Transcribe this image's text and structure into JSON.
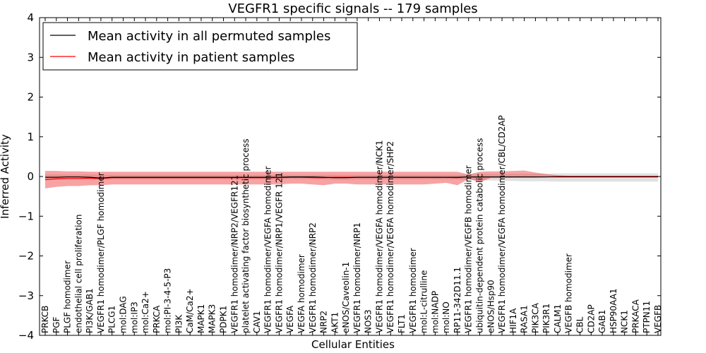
{
  "chart_data": {
    "type": "line",
    "title": "VEGFR1 specific signals -- 179 samples",
    "xlabel": "Cellular Entities",
    "ylabel": "Inferred Activity",
    "ylim": [
      -4,
      4
    ],
    "yticks": [
      -4,
      -3,
      -2,
      -1,
      0,
      1,
      2,
      3,
      4
    ],
    "ytick_labels": [
      "−4",
      "−3",
      "−2",
      "−1",
      "0",
      "1",
      "2",
      "3",
      "4"
    ],
    "legend": {
      "location": "upper-left",
      "entries": [
        {
          "label": "Mean activity in all permuted samples",
          "color": "#000000"
        },
        {
          "label": "Mean activity in patient samples",
          "color": "#ff0000"
        }
      ]
    },
    "categories": [
      "PRKCB",
      "PGF",
      "PLGF homodimer",
      "endothelial cell proliferation",
      "PI3K/GAB1",
      "VEGFR1 homodimer/PLGF homodimer",
      "PLCG1",
      "mol:DAG",
      "mol:IP3",
      "mol:Ca2+",
      "PRKCA",
      "mol:PI-3-4-5-P3",
      "PI3K",
      "CaM/Ca2+",
      "MAPK1",
      "MAPK3",
      "PDPK1",
      "VEGFR1 homodimer/NRP2/VEGFR121",
      "platelet activating factor biosynthetic process",
      "CAV1",
      "VEGFR1 homodimer/VEGFA homodimer",
      "VEGFR1 homodimer/NRP1/VEGFR 121",
      "VEGFA",
      "VEGFA homodimer",
      "VEGFR1 homodimer/NRP2",
      "NRP2",
      "AKT1",
      "eNOS/Caveolin-1",
      "VEGFR1 homodimer/NRP1",
      "NOS3",
      "VEGFR1 homodimer/VEGFA homodimer/NCK1",
      "VEGFR1 homodimer/VEGFA homodimer/SHP2",
      "FLT1",
      "VEGFR1 homodimer",
      "mol:L-citrulline",
      "mol:NADP",
      "mol:NO",
      "RP11-342D11.1",
      "VEGFR1 homodimer/VEGFB homodimer",
      "ubiquitin-dependent protein catabolic process",
      "eNOS/Hsp90",
      "VEGFR1 homodimer/VEGFA homodimer/CBL/CD2AP",
      "HIF1A",
      "RASA1",
      "PIK3CA",
      "PIK3R1",
      "CALM1",
      "VEGFB homodimer",
      "CBL",
      "CD2AP",
      "GAB1",
      "HSP90AA1",
      "NCK1",
      "PRKACA",
      "PTPN11",
      "VEGFB"
    ],
    "series": [
      {
        "name": "Mean activity in all permuted samples",
        "color": "#000000",
        "values": [
          -0.02,
          -0.02,
          -0.01,
          -0.01,
          -0.02,
          -0.04,
          -0.02,
          -0.02,
          -0.02,
          -0.02,
          -0.02,
          -0.02,
          -0.02,
          -0.02,
          -0.02,
          -0.02,
          -0.02,
          -0.02,
          -0.02,
          -0.02,
          -0.02,
          -0.02,
          -0.01,
          -0.01,
          -0.01,
          -0.02,
          -0.03,
          -0.03,
          -0.02,
          -0.02,
          -0.02,
          -0.02,
          -0.02,
          -0.02,
          -0.02,
          -0.02,
          -0.02,
          -0.02,
          -0.01,
          -0.01,
          -0.01,
          -0.01,
          -0.01,
          -0.01,
          -0.01,
          -0.01,
          -0.01,
          -0.01,
          -0.01,
          -0.01,
          -0.01,
          -0.01,
          -0.01,
          -0.01,
          -0.01,
          -0.01
        ],
        "band_lower": [
          -0.08,
          -0.07,
          -0.06,
          -0.06,
          -0.07,
          -0.09,
          -0.07,
          -0.07,
          -0.07,
          -0.07,
          -0.07,
          -0.07,
          -0.07,
          -0.07,
          -0.07,
          -0.07,
          -0.07,
          -0.07,
          -0.07,
          -0.07,
          -0.07,
          -0.07,
          -0.06,
          -0.06,
          -0.06,
          -0.07,
          -0.08,
          -0.08,
          -0.07,
          -0.07,
          -0.07,
          -0.07,
          -0.07,
          -0.07,
          -0.07,
          -0.07,
          -0.07,
          -0.07,
          -0.09,
          -0.1,
          -0.1,
          -0.11,
          -0.11,
          -0.12,
          -0.12,
          -0.12,
          -0.13,
          -0.13,
          -0.13,
          -0.13,
          -0.13,
          -0.13,
          -0.13,
          -0.13,
          -0.13,
          -0.13
        ],
        "band_upper": [
          0.05,
          0.05,
          0.05,
          0.05,
          0.05,
          0.04,
          0.04,
          0.04,
          0.04,
          0.04,
          0.04,
          0.04,
          0.04,
          0.04,
          0.04,
          0.04,
          0.04,
          0.04,
          0.04,
          0.04,
          0.04,
          0.04,
          0.04,
          0.04,
          0.04,
          0.04,
          0.04,
          0.04,
          0.04,
          0.04,
          0.04,
          0.04,
          0.04,
          0.04,
          0.04,
          0.04,
          0.04,
          0.04,
          0.06,
          0.06,
          0.06,
          0.06,
          0.07,
          0.07,
          0.07,
          0.07,
          0.08,
          0.08,
          0.08,
          0.08,
          0.08,
          0.08,
          0.08,
          0.08,
          0.08,
          0.08
        ]
      },
      {
        "name": "Mean activity in patient samples",
        "color": "#ff0000",
        "values": [
          -0.08,
          -0.06,
          -0.05,
          -0.05,
          -0.04,
          -0.05,
          -0.03,
          -0.03,
          -0.03,
          -0.03,
          -0.03,
          -0.03,
          -0.03,
          -0.03,
          -0.03,
          -0.03,
          -0.03,
          -0.03,
          -0.03,
          -0.03,
          -0.03,
          -0.03,
          -0.02,
          -0.02,
          -0.03,
          -0.03,
          -0.02,
          -0.02,
          -0.02,
          -0.02,
          -0.02,
          -0.02,
          -0.02,
          -0.02,
          -0.02,
          -0.02,
          -0.02,
          -0.03,
          -0.01,
          -0.02,
          -0.01,
          -0.01,
          -0.01,
          -0.01,
          -0.01,
          -0.01,
          0.0,
          0.0,
          0.0,
          0.0,
          0.0,
          0.0,
          0.0,
          0.0,
          0.0,
          0.0
        ],
        "band_lower": [
          -0.3,
          -0.26,
          -0.24,
          -0.24,
          -0.22,
          -0.22,
          -0.2,
          -0.2,
          -0.2,
          -0.2,
          -0.2,
          -0.2,
          -0.2,
          -0.2,
          -0.2,
          -0.2,
          -0.2,
          -0.2,
          -0.2,
          -0.2,
          -0.2,
          -0.2,
          -0.18,
          -0.18,
          -0.2,
          -0.22,
          -0.18,
          -0.18,
          -0.2,
          -0.2,
          -0.2,
          -0.2,
          -0.2,
          -0.2,
          -0.2,
          -0.18,
          -0.16,
          -0.22,
          -0.06,
          -0.14,
          -0.04,
          -0.04,
          -0.03,
          -0.03,
          -0.03,
          -0.02,
          -0.01,
          -0.01,
          -0.01,
          -0.01,
          -0.01,
          -0.01,
          -0.01,
          -0.01,
          -0.01,
          -0.01
        ],
        "band_upper": [
          0.14,
          0.14,
          0.13,
          0.13,
          0.12,
          0.12,
          0.12,
          0.12,
          0.12,
          0.12,
          0.12,
          0.12,
          0.12,
          0.12,
          0.12,
          0.12,
          0.12,
          0.12,
          0.12,
          0.12,
          0.12,
          0.12,
          0.12,
          0.12,
          0.12,
          0.12,
          0.12,
          0.12,
          0.12,
          0.12,
          0.12,
          0.12,
          0.12,
          0.12,
          0.12,
          0.12,
          0.12,
          0.12,
          0.05,
          0.12,
          0.13,
          0.13,
          0.14,
          0.15,
          0.1,
          0.06,
          0.03,
          0.02,
          0.02,
          0.02,
          0.02,
          0.02,
          0.02,
          0.02,
          0.02,
          0.02
        ]
      }
    ]
  }
}
